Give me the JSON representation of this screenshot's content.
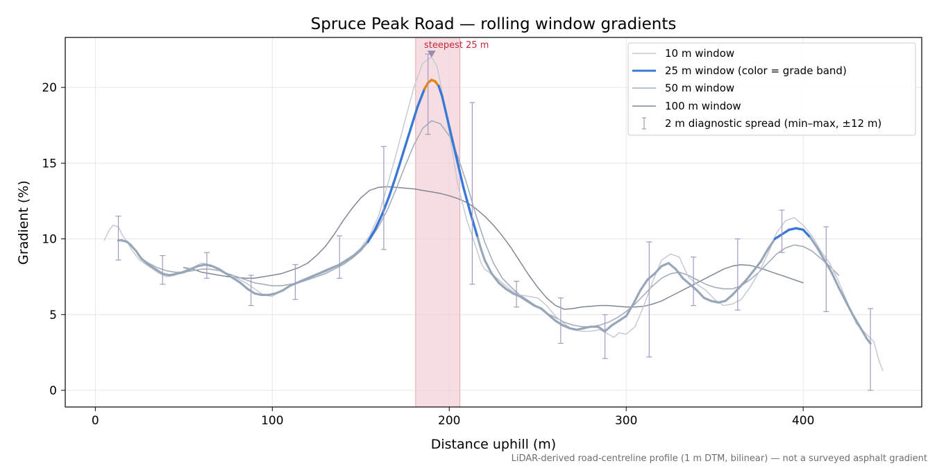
{
  "chart_data": {
    "type": "line",
    "title": "Spruce Peak Road — rolling window gradients",
    "xlabel": "Distance uphill (m)",
    "ylabel": "Gradient (%)",
    "xlim": [
      -17,
      467
    ],
    "ylim": [
      -1.1,
      23.3
    ],
    "x_ticks": [
      0,
      100,
      200,
      300,
      400
    ],
    "y_ticks": [
      0,
      5,
      10,
      15,
      20
    ],
    "grid": true,
    "legend_position": "top-right",
    "footnote": "LiDAR-derived road-centreline profile (1 m DTM, bilinear) — not a surveyed asphalt gradient",
    "annotation": {
      "text": "steepest 25 m",
      "x": 190,
      "y": 22.2
    },
    "highlight_band": {
      "x_start": 181,
      "x_end": 206
    },
    "colors": {
      "w10": "#c4cad3",
      "w25_base": "#97a6b8",
      "w25_mid": "#3a77d6",
      "w25_high": "#e3860f",
      "w50": "#a3acbd",
      "w100": "#7f8797",
      "spread": "#a09ac0",
      "band": "#f2cfd4",
      "annot": "#c8283a"
    },
    "series": [
      {
        "name": "10 m window",
        "x": [
          5,
          8,
          10,
          13,
          15,
          18,
          21,
          25,
          30,
          35,
          40,
          45,
          50,
          55,
          60,
          65,
          70,
          75,
          80,
          85,
          90,
          95,
          100,
          105,
          110,
          115,
          120,
          125,
          130,
          135,
          140,
          145,
          150,
          155,
          160,
          165,
          170,
          175,
          180,
          185,
          190,
          193,
          195,
          200,
          205,
          210,
          215,
          218,
          220,
          225,
          230,
          235,
          240,
          245,
          250,
          255,
          260,
          265,
          270,
          275,
          280,
          285,
          290,
          293,
          296,
          300,
          305,
          310,
          315,
          320,
          325,
          330,
          335,
          340,
          345,
          350,
          355,
          360,
          365,
          370,
          375,
          380,
          385,
          390,
          395,
          400,
          405,
          410,
          415,
          420,
          425,
          430,
          435,
          440,
          443,
          445
        ],
        "y": [
          9.9,
          10.6,
          10.9,
          10.8,
          10.3,
          9.8,
          9.2,
          8.6,
          8.2,
          7.8,
          7.5,
          7.6,
          7.9,
          8.1,
          8.4,
          8.3,
          7.9,
          7.6,
          7.4,
          7.1,
          6.7,
          6.3,
          6.2,
          6.6,
          6.9,
          7.1,
          7.4,
          7.6,
          7.8,
          8.1,
          8.4,
          8.8,
          9.4,
          10.2,
          11.5,
          13.5,
          15.6,
          17.8,
          20.0,
          21.6,
          22.0,
          21.4,
          20.3,
          17.0,
          13.5,
          11.2,
          9.5,
          8.4,
          8.0,
          7.6,
          7.1,
          6.6,
          6.3,
          6.2,
          6.1,
          5.6,
          4.9,
          4.4,
          4.0,
          3.9,
          3.9,
          4.0,
          3.7,
          3.5,
          3.8,
          3.7,
          4.2,
          5.6,
          7.2,
          8.6,
          9.0,
          8.8,
          7.5,
          7.0,
          6.6,
          6.0,
          5.6,
          5.7,
          6.0,
          6.8,
          7.8,
          9.0,
          10.4,
          11.2,
          11.4,
          10.9,
          10.2,
          9.2,
          8.4,
          7.2,
          5.8,
          4.4,
          3.8,
          3.2,
          1.9,
          1.3
        ]
      },
      {
        "name": "25 m window (color = grade band)",
        "x": [
          13,
          15,
          18,
          20,
          23,
          26,
          30,
          34,
          38,
          42,
          46,
          50,
          54,
          58,
          62,
          66,
          70,
          74,
          78,
          82,
          86,
          90,
          94,
          98,
          102,
          106,
          110,
          114,
          118,
          122,
          126,
          130,
          134,
          138,
          142,
          146,
          150,
          154,
          158,
          162,
          166,
          170,
          174,
          178,
          182,
          186,
          188,
          190,
          192,
          194,
          196,
          200,
          204,
          208,
          212,
          216,
          218,
          220,
          224,
          228,
          232,
          236,
          240,
          244,
          248,
          252,
          256,
          260,
          264,
          268,
          272,
          276,
          280,
          284,
          288,
          292,
          296,
          300,
          304,
          308,
          312,
          316,
          320,
          324,
          328,
          332,
          336,
          340,
          344,
          348,
          352,
          356,
          360,
          364,
          368,
          372,
          376,
          380,
          384,
          388,
          392,
          396,
          400,
          404,
          408,
          412,
          416,
          420,
          424,
          428,
          432,
          436,
          438
        ],
        "y": [
          9.9,
          9.9,
          9.8,
          9.6,
          9.2,
          8.7,
          8.3,
          8.0,
          7.7,
          7.6,
          7.7,
          7.8,
          8.0,
          8.2,
          8.3,
          8.2,
          8.0,
          7.7,
          7.4,
          7.1,
          6.7,
          6.4,
          6.3,
          6.3,
          6.4,
          6.6,
          6.9,
          7.1,
          7.3,
          7.5,
          7.7,
          7.9,
          8.1,
          8.3,
          8.6,
          8.9,
          9.3,
          9.8,
          10.6,
          11.6,
          12.8,
          14.2,
          15.7,
          17.2,
          18.7,
          19.9,
          20.3,
          20.5,
          20.4,
          20.1,
          19.4,
          17.4,
          15.4,
          13.4,
          11.7,
          10.1,
          9.3,
          8.6,
          7.7,
          7.1,
          6.7,
          6.4,
          6.2,
          5.9,
          5.6,
          5.4,
          5.0,
          4.6,
          4.3,
          4.1,
          4.0,
          4.1,
          4.2,
          4.2,
          3.9,
          4.3,
          4.6,
          4.9,
          5.7,
          6.6,
          7.3,
          7.7,
          8.2,
          8.4,
          8.0,
          7.4,
          7.0,
          6.6,
          6.1,
          5.9,
          5.8,
          5.9,
          6.3,
          6.8,
          7.3,
          7.9,
          8.5,
          9.3,
          10.0,
          10.3,
          10.6,
          10.7,
          10.6,
          10.1,
          9.4,
          8.6,
          7.8,
          6.8,
          5.9,
          5.0,
          4.2,
          3.4,
          3.1
        ]
      },
      {
        "name": "50 m window",
        "x": [
          25,
          30,
          35,
          40,
          45,
          50,
          55,
          60,
          65,
          70,
          75,
          80,
          85,
          90,
          95,
          100,
          105,
          110,
          115,
          120,
          125,
          130,
          135,
          140,
          145,
          150,
          155,
          160,
          165,
          170,
          175,
          180,
          185,
          190,
          195,
          200,
          205,
          210,
          215,
          220,
          225,
          230,
          235,
          240,
          245,
          250,
          255,
          260,
          265,
          270,
          275,
          280,
          285,
          290,
          295,
          300,
          305,
          310,
          315,
          320,
          325,
          330,
          335,
          340,
          345,
          350,
          355,
          360,
          365,
          370,
          375,
          380,
          385,
          390,
          395,
          400,
          405,
          410,
          415,
          420
        ],
        "y": [
          8.8,
          8.4,
          8.1,
          7.9,
          7.8,
          7.8,
          7.9,
          8.0,
          8.0,
          7.9,
          7.7,
          7.5,
          7.3,
          7.1,
          7.0,
          6.9,
          6.9,
          7.0,
          7.1,
          7.3,
          7.5,
          7.7,
          8.0,
          8.3,
          8.7,
          9.2,
          9.9,
          10.8,
          11.9,
          13.3,
          14.8,
          16.2,
          17.3,
          17.8,
          17.6,
          16.8,
          15.4,
          13.6,
          11.6,
          9.8,
          8.4,
          7.4,
          6.8,
          6.3,
          5.9,
          5.5,
          5.1,
          4.8,
          4.5,
          4.3,
          4.2,
          4.2,
          4.3,
          4.5,
          4.8,
          5.2,
          5.7,
          6.3,
          6.9,
          7.4,
          7.7,
          7.8,
          7.6,
          7.3,
          7.0,
          6.8,
          6.7,
          6.7,
          6.9,
          7.3,
          7.8,
          8.4,
          9.0,
          9.4,
          9.6,
          9.5,
          9.2,
          8.7,
          8.2,
          7.6
        ]
      },
      {
        "name": "100 m window",
        "x": [
          50,
          55,
          60,
          65,
          70,
          75,
          80,
          85,
          90,
          95,
          100,
          105,
          110,
          115,
          120,
          125,
          130,
          135,
          140,
          145,
          150,
          155,
          160,
          165,
          170,
          175,
          180,
          185,
          190,
          195,
          200,
          205,
          210,
          215,
          220,
          225,
          230,
          235,
          240,
          245,
          250,
          255,
          260,
          265,
          270,
          275,
          280,
          285,
          290,
          295,
          300,
          305,
          310,
          315,
          320,
          325,
          330,
          335,
          340,
          345,
          350,
          355,
          360,
          365,
          370,
          375,
          380,
          385,
          390,
          395,
          400
        ],
        "y": [
          8.1,
          8.0,
          7.8,
          7.7,
          7.6,
          7.5,
          7.45,
          7.4,
          7.4,
          7.5,
          7.6,
          7.7,
          7.9,
          8.1,
          8.4,
          8.9,
          9.5,
          10.3,
          11.2,
          12.0,
          12.7,
          13.2,
          13.4,
          13.45,
          13.4,
          13.35,
          13.3,
          13.2,
          13.1,
          13.0,
          12.85,
          12.65,
          12.4,
          12.0,
          11.5,
          10.9,
          10.2,
          9.4,
          8.5,
          7.6,
          6.8,
          6.1,
          5.6,
          5.35,
          5.4,
          5.5,
          5.55,
          5.6,
          5.6,
          5.55,
          5.5,
          5.5,
          5.55,
          5.7,
          5.9,
          6.2,
          6.5,
          6.8,
          7.1,
          7.4,
          7.7,
          8.0,
          8.2,
          8.3,
          8.25,
          8.1,
          7.9,
          7.7,
          7.5,
          7.3,
          7.1
        ]
      }
    ],
    "spread_bars": {
      "name": "2 m diagnostic spread (min–max, ±12 m)",
      "x": [
        13,
        38,
        63,
        88,
        113,
        138,
        163,
        188,
        213,
        238,
        263,
        288,
        313,
        338,
        363,
        388,
        413,
        438
      ],
      "min": [
        8.6,
        7.0,
        7.4,
        5.6,
        6.0,
        7.4,
        9.3,
        16.9,
        7.0,
        5.5,
        3.1,
        2.1,
        2.2,
        5.6,
        5.3,
        9.1,
        5.2,
        0.0
      ],
      "max": [
        11.5,
        8.9,
        9.1,
        7.6,
        8.3,
        10.2,
        16.1,
        22.2,
        19.0,
        7.2,
        6.1,
        5.0,
        9.8,
        8.8,
        10.0,
        11.9,
        10.8,
        5.4
      ]
    }
  }
}
